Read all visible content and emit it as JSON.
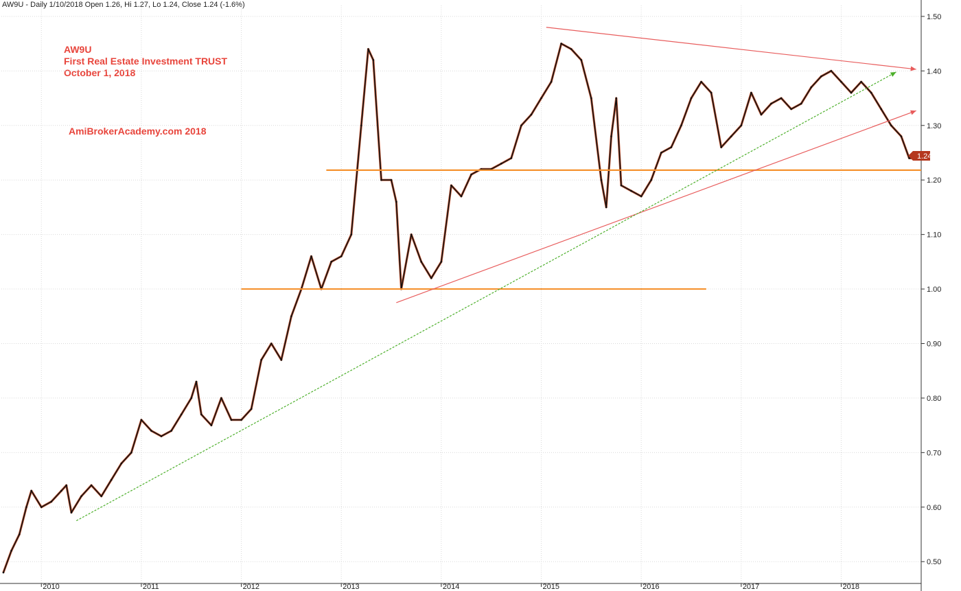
{
  "header": "AW9U - Daily 1/10/2018 Open 1.26, Hi 1.27, Lo 1.24, Close 1.24 (-1.6%)",
  "annotations": {
    "line1": "AW9U",
    "line2": "First Real Estate Investment TRUST",
    "line3": "October 1, 2018",
    "brand": "AmiBrokerAcademy.com  2018"
  },
  "last_price_label": "1.24",
  "colors": {
    "price": "#111111",
    "candle_edge": "#c0451e",
    "support": "#f5922f",
    "trend_red": "#e85c5c",
    "trend_green": "#4caf2a",
    "grid": "#d9d9d9",
    "label_bg": "#b5381e"
  },
  "chart_data": {
    "type": "line",
    "title": "",
    "xlabel": "",
    "ylabel": "",
    "ylim": [
      0.46,
      1.52
    ],
    "xlim": [
      2009.6,
      2018.8
    ],
    "y_ticks": [
      "0.50",
      "0.60",
      "0.70",
      "0.80",
      "0.90",
      "1.00",
      "1.10",
      "1.20",
      "1.30",
      "1.40",
      "1.50"
    ],
    "x_ticks": [
      "2010",
      "2011",
      "2012",
      "2013",
      "2014",
      "2015",
      "2016",
      "2017",
      "2018"
    ],
    "grid": true,
    "series": [
      {
        "x": [
          2009.62,
          2009.7,
          2009.78,
          2009.85,
          2009.9,
          2010.0,
          2010.1,
          2010.2,
          2010.25,
          2010.3,
          2010.4,
          2010.5,
          2010.6,
          2010.7,
          2010.8,
          2010.9,
          2011.0,
          2011.1,
          2011.2,
          2011.3,
          2011.4,
          2011.5,
          2011.55,
          2011.6,
          2011.7,
          2011.8,
          2011.9,
          2012.0,
          2012.1,
          2012.2,
          2012.3,
          2012.4,
          2012.5,
          2012.6,
          2012.7,
          2012.8,
          2012.9,
          2013.0,
          2013.1,
          2013.2,
          2013.27,
          2013.32,
          2013.4,
          2013.5,
          2013.55,
          2013.6,
          2013.7,
          2013.8,
          2013.9,
          2014.0,
          2014.1,
          2014.2,
          2014.3,
          2014.4,
          2014.5,
          2014.6,
          2014.7,
          2014.8,
          2014.9,
          2015.0,
          2015.1,
          2015.2,
          2015.3,
          2015.4,
          2015.5,
          2015.6,
          2015.65,
          2015.7,
          2015.75,
          2015.8,
          2015.9,
          2016.0,
          2016.1,
          2016.2,
          2016.3,
          2016.4,
          2016.5,
          2016.6,
          2016.7,
          2016.8,
          2016.9,
          2017.0,
          2017.1,
          2017.2,
          2017.3,
          2017.4,
          2017.5,
          2017.6,
          2017.7,
          2017.8,
          2017.9,
          2018.0,
          2018.1,
          2018.2,
          2018.3,
          2018.4,
          2018.5,
          2018.6,
          2018.68,
          2018.75
        ],
        "values": [
          0.48,
          0.52,
          0.55,
          0.6,
          0.63,
          0.6,
          0.61,
          0.63,
          0.64,
          0.59,
          0.62,
          0.64,
          0.62,
          0.65,
          0.68,
          0.7,
          0.76,
          0.74,
          0.73,
          0.74,
          0.77,
          0.8,
          0.83,
          0.77,
          0.75,
          0.8,
          0.76,
          0.76,
          0.78,
          0.87,
          0.9,
          0.87,
          0.95,
          1.0,
          1.06,
          1.0,
          1.05,
          1.06,
          1.1,
          1.3,
          1.44,
          1.42,
          1.2,
          1.2,
          1.16,
          1.0,
          1.1,
          1.05,
          1.02,
          1.05,
          1.19,
          1.17,
          1.21,
          1.22,
          1.22,
          1.23,
          1.24,
          1.3,
          1.32,
          1.35,
          1.38,
          1.45,
          1.44,
          1.42,
          1.35,
          1.2,
          1.15,
          1.28,
          1.35,
          1.19,
          1.18,
          1.17,
          1.2,
          1.25,
          1.26,
          1.3,
          1.35,
          1.38,
          1.36,
          1.26,
          1.28,
          1.3,
          1.36,
          1.32,
          1.34,
          1.35,
          1.33,
          1.34,
          1.37,
          1.39,
          1.4,
          1.38,
          1.36,
          1.38,
          1.36,
          1.33,
          1.3,
          1.28,
          1.24,
          1.24
        ]
      }
    ],
    "horizontal_lines": [
      {
        "y": 1.0,
        "x_start": 2012.0,
        "x_end": 2016.65
      },
      {
        "y": 1.218,
        "x_start": 2012.85,
        "x_end": 2018.8
      }
    ],
    "trend_lines": [
      {
        "color": "red",
        "x1": 2013.55,
        "y1": 0.975,
        "x2": 2018.75,
        "y2": 1.327,
        "arrow": true
      },
      {
        "color": "red",
        "x1": 2015.05,
        "y1": 1.48,
        "x2": 2018.75,
        "y2": 1.403,
        "arrow": true
      },
      {
        "color": "green",
        "x1": 2010.35,
        "y1": 0.575,
        "x2": 2018.55,
        "y2": 1.398,
        "arrow": true
      }
    ]
  }
}
